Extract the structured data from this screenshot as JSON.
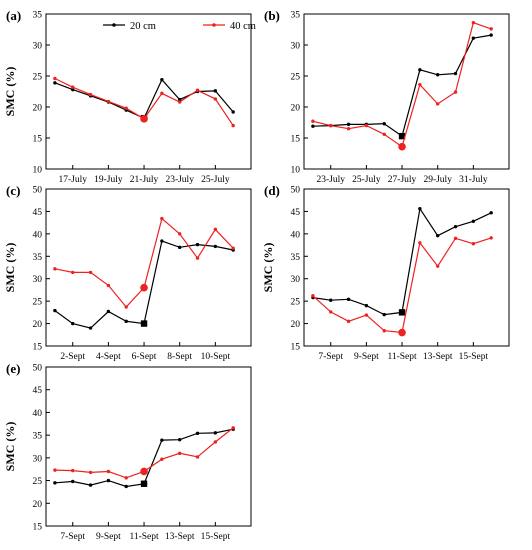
{
  "legend": {
    "series": [
      {
        "name": "20 cm",
        "color": "#000000"
      },
      {
        "name": "40 cm",
        "color": "#ee2222"
      }
    ]
  },
  "chart_data": [
    {
      "type": "line",
      "panel_label": "(a)",
      "ylabel": "SMC (%)",
      "ylim": [
        10,
        35
      ],
      "yticks": [
        10,
        15,
        20,
        25,
        30,
        35
      ],
      "xlim": [
        15.5,
        27
      ],
      "xticks": [
        17,
        19,
        21,
        23,
        25
      ],
      "xtick_labels": [
        "17-July",
        "19-July",
        "21-July",
        "23-July",
        "25-July"
      ],
      "series": [
        {
          "name": "20 cm",
          "color": "#000000",
          "x": [
            16,
            17,
            18,
            19,
            20,
            21,
            22,
            23,
            24,
            25,
            26
          ],
          "y": [
            23.9,
            22.8,
            21.8,
            20.8,
            19.5,
            18.2,
            24.4,
            21.2,
            22.5,
            22.6,
            19.2
          ],
          "marker": {
            "x": 21,
            "y": 18.2,
            "shape": "square"
          }
        },
        {
          "name": "40 cm",
          "color": "#ee2222",
          "x": [
            16,
            17,
            18,
            19,
            20,
            21,
            22,
            23,
            24,
            25,
            26
          ],
          "y": [
            24.6,
            23.2,
            22.0,
            20.9,
            19.8,
            18.1,
            22.2,
            20.8,
            22.7,
            21.3,
            17.0
          ],
          "marker": {
            "x": 21,
            "y": 18.1,
            "shape": "circle"
          }
        }
      ]
    },
    {
      "type": "line",
      "panel_label": "(b)",
      "ylabel": "",
      "ylim": [
        10,
        35
      ],
      "yticks": [
        10,
        15,
        20,
        25,
        30,
        35
      ],
      "xlim": [
        21.5,
        33
      ],
      "xticks": [
        23,
        25,
        27,
        29,
        31
      ],
      "xtick_labels": [
        "23-July",
        "25-July",
        "27-July",
        "29-July",
        "31-July"
      ],
      "series": [
        {
          "name": "20 cm",
          "color": "#000000",
          "x": [
            22,
            23,
            24,
            25,
            26,
            27,
            28,
            29,
            30,
            31,
            32
          ],
          "y": [
            16.9,
            17.0,
            17.2,
            17.2,
            17.3,
            15.3,
            26.0,
            25.2,
            25.4,
            31.1,
            31.6
          ],
          "marker": {
            "x": 27,
            "y": 15.3,
            "shape": "square"
          }
        },
        {
          "name": "40 cm",
          "color": "#ee2222",
          "x": [
            22,
            23,
            24,
            25,
            26,
            27,
            28,
            29,
            30,
            31,
            32
          ],
          "y": [
            17.7,
            17.0,
            16.5,
            17.0,
            15.6,
            13.6,
            23.6,
            20.5,
            22.4,
            33.6,
            32.6
          ],
          "marker": {
            "x": 27,
            "y": 13.6,
            "shape": "circle"
          }
        }
      ]
    },
    {
      "type": "line",
      "panel_label": "(c)",
      "ylabel": "SMC (%)",
      "ylim": [
        15,
        50
      ],
      "yticks": [
        15,
        20,
        25,
        30,
        35,
        40,
        45,
        50
      ],
      "xlim": [
        0.5,
        12
      ],
      "xticks": [
        2,
        4,
        6,
        8,
        10
      ],
      "xtick_labels": [
        "2-Sept",
        "4-Sept",
        "6-Sept",
        "8-Sept",
        "10-Sept"
      ],
      "series": [
        {
          "name": "20 cm",
          "color": "#000000",
          "x": [
            1,
            2,
            3,
            4,
            5,
            6,
            7,
            8,
            9,
            10,
            11
          ],
          "y": [
            22.9,
            20.0,
            19.0,
            22.7,
            20.5,
            20.0,
            38.4,
            37.0,
            37.6,
            37.2,
            36.4
          ],
          "marker": {
            "x": 6,
            "y": 20.0,
            "shape": "square"
          }
        },
        {
          "name": "40 cm",
          "color": "#ee2222",
          "x": [
            1,
            2,
            3,
            4,
            5,
            6,
            7,
            8,
            9,
            10,
            11
          ],
          "y": [
            32.2,
            31.4,
            31.4,
            28.5,
            23.7,
            28.0,
            43.4,
            40.0,
            34.6,
            41.0,
            36.8
          ],
          "marker": {
            "x": 6,
            "y": 28.0,
            "shape": "circle"
          }
        }
      ]
    },
    {
      "type": "line",
      "panel_label": "(d)",
      "ylabel": "SMC (%)",
      "ylim": [
        15,
        50
      ],
      "yticks": [
        15,
        20,
        25,
        30,
        35,
        40,
        45,
        50
      ],
      "xlim": [
        5.5,
        17
      ],
      "xticks": [
        7,
        9,
        11,
        13,
        15
      ],
      "xtick_labels": [
        "7-Sept",
        "9-Sept",
        "11-Sept",
        "13-Sept",
        "15-Sept"
      ],
      "series": [
        {
          "name": "20 cm",
          "color": "#000000",
          "x": [
            6,
            7,
            8,
            9,
            10,
            11,
            12,
            13,
            14,
            15,
            16
          ],
          "y": [
            25.8,
            25.2,
            25.4,
            24.0,
            22.0,
            22.5,
            45.6,
            39.6,
            41.6,
            42.8,
            44.7
          ],
          "marker": {
            "x": 11,
            "y": 22.5,
            "shape": "square"
          }
        },
        {
          "name": "40 cm",
          "color": "#ee2222",
          "x": [
            6,
            7,
            8,
            9,
            10,
            11,
            12,
            13,
            14,
            15,
            16
          ],
          "y": [
            26.2,
            22.6,
            20.5,
            21.9,
            18.4,
            18.0,
            38.0,
            32.8,
            39.0,
            37.8,
            39.1
          ],
          "marker": {
            "x": 11,
            "y": 18.0,
            "shape": "circle"
          }
        }
      ]
    },
    {
      "type": "line",
      "panel_label": "(e)",
      "ylabel": "SMC (%)",
      "ylim": [
        15,
        50
      ],
      "yticks": [
        15,
        20,
        25,
        30,
        35,
        40,
        45,
        50
      ],
      "xlim": [
        5.5,
        17
      ],
      "xticks": [
        7,
        9,
        11,
        13,
        15
      ],
      "xtick_labels": [
        "7-Sept",
        "9-Sept",
        "11-Sept",
        "13-Sept",
        "15-Sept"
      ],
      "series": [
        {
          "name": "20 cm",
          "color": "#000000",
          "x": [
            6,
            7,
            8,
            9,
            10,
            11,
            12,
            13,
            14,
            15,
            16
          ],
          "y": [
            24.5,
            24.8,
            24.0,
            25.0,
            23.7,
            24.3,
            33.9,
            34.0,
            35.4,
            35.5,
            36.3
          ],
          "marker": {
            "x": 11,
            "y": 24.3,
            "shape": "square"
          }
        },
        {
          "name": "40 cm",
          "color": "#ee2222",
          "x": [
            6,
            7,
            8,
            9,
            10,
            11,
            12,
            13,
            14,
            15,
            16
          ],
          "y": [
            27.3,
            27.2,
            26.8,
            27.0,
            25.6,
            27.0,
            29.7,
            31.0,
            30.2,
            33.5,
            36.6
          ],
          "marker": {
            "x": 11,
            "y": 27.0,
            "shape": "circle"
          }
        }
      ]
    }
  ]
}
